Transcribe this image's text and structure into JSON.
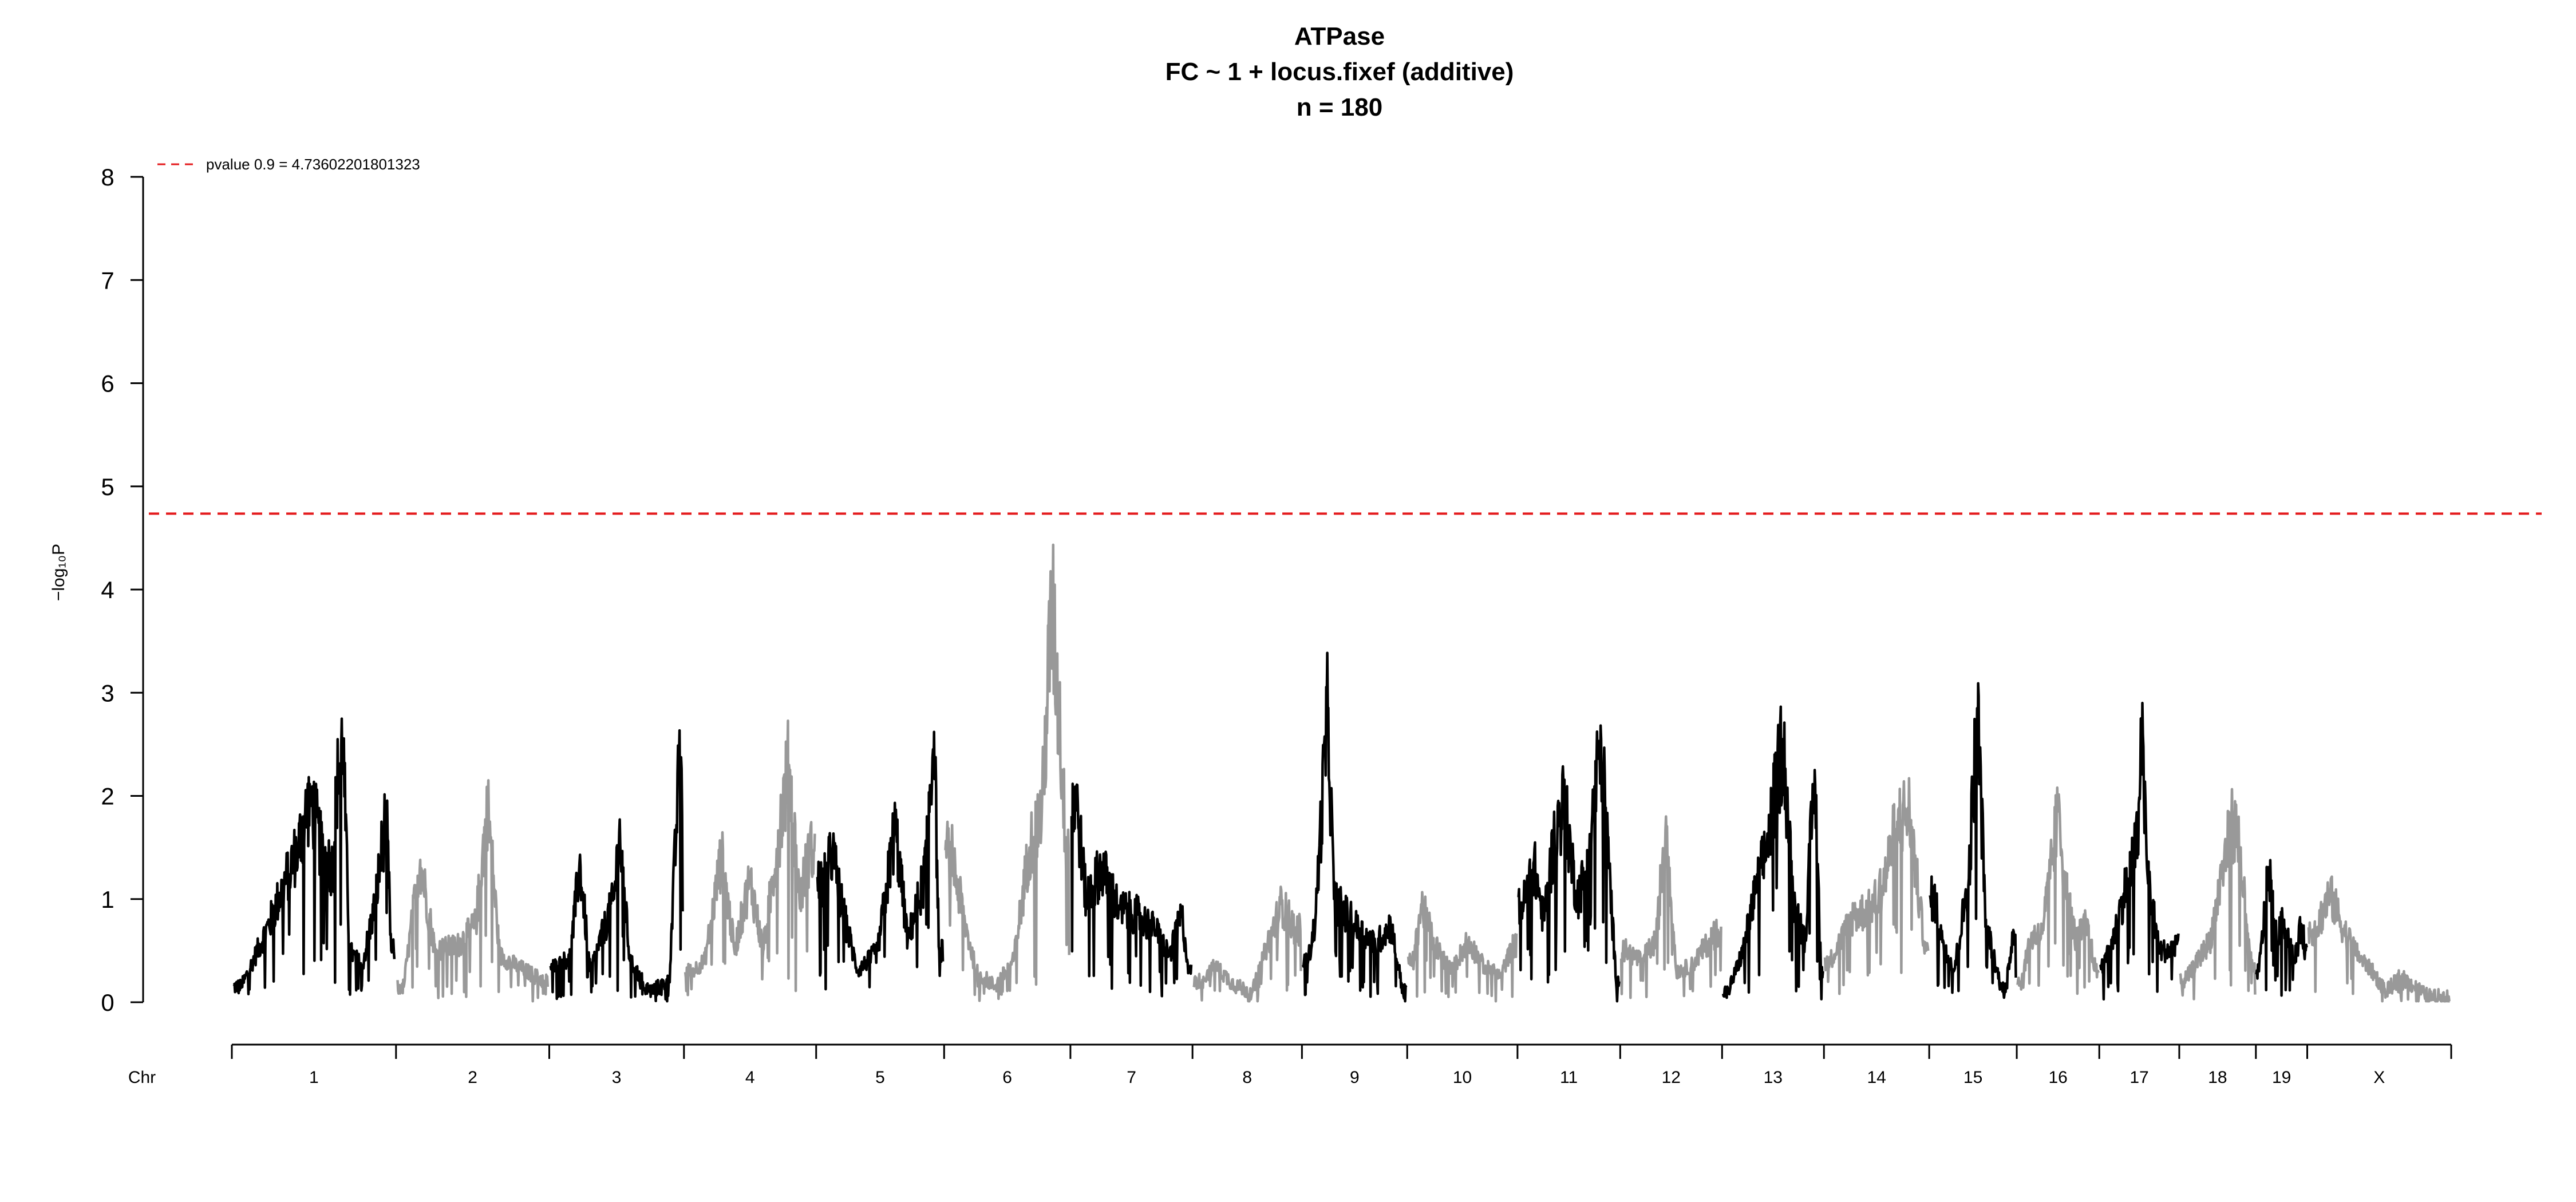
{
  "chart_data": {
    "type": "line",
    "title": "ATPase",
    "subtitle": "FC ~ 1 + locus.fixef (additive)",
    "subtitle2": "n = 180",
    "ylabel": "−log₁₀P",
    "xlabel": "Chr",
    "ylim": [
      0,
      8
    ],
    "yticks": [
      "0",
      "1",
      "2",
      "3",
      "4",
      "5",
      "6",
      "7",
      "8"
    ],
    "grid": false,
    "threshold": {
      "value": 4.73602201801323,
      "label": "pvalue 0.9 = 4.73602201801323",
      "color": "#e41a1c"
    },
    "colors": {
      "odd": "#000000",
      "even": "#999999"
    },
    "legend_position": "top-left",
    "chromosomes": [
      {
        "name": "1",
        "length": 195,
        "peaks": [
          [
            0.05,
            0.15
          ],
          [
            0.22,
            0.75
          ],
          [
            0.4,
            1.5
          ],
          [
            0.48,
            2.0
          ],
          [
            0.55,
            1.45
          ],
          [
            0.62,
            1.3
          ],
          [
            0.64,
            2.05
          ],
          [
            0.68,
            2.55
          ],
          [
            0.72,
            0.5
          ],
          [
            0.8,
            0.35
          ],
          [
            0.88,
            0.95
          ],
          [
            0.95,
            1.85
          ],
          [
            0.98,
            0.5
          ]
        ]
      },
      {
        "name": "2",
        "length": 182,
        "peaks": [
          [
            0.04,
            0.15
          ],
          [
            0.15,
            1.38
          ],
          [
            0.25,
            0.5
          ],
          [
            0.4,
            0.55
          ],
          [
            0.52,
            0.75
          ],
          [
            0.6,
            1.9
          ],
          [
            0.68,
            0.45
          ],
          [
            0.8,
            0.35
          ],
          [
            0.92,
            0.25
          ],
          [
            0.98,
            0.2
          ]
        ]
      },
      {
        "name": "3",
        "length": 160,
        "peaks": [
          [
            0.05,
            0.35
          ],
          [
            0.15,
            0.45
          ],
          [
            0.22,
            1.35
          ],
          [
            0.3,
            0.3
          ],
          [
            0.48,
            1.0
          ],
          [
            0.52,
            1.65
          ],
          [
            0.6,
            0.4
          ],
          [
            0.75,
            0.1
          ],
          [
            0.9,
            0.2
          ],
          [
            0.97,
            2.2
          ]
        ]
      },
      {
        "name": "4",
        "length": 157,
        "peaks": [
          [
            0.05,
            0.3
          ],
          [
            0.15,
            0.4
          ],
          [
            0.28,
            1.42
          ],
          [
            0.38,
            0.5
          ],
          [
            0.5,
            1.2
          ],
          [
            0.6,
            0.5
          ],
          [
            0.74,
            1.8
          ],
          [
            0.8,
            2.3
          ],
          [
            0.88,
            1.0
          ],
          [
            0.96,
            1.45
          ]
        ]
      },
      {
        "name": "5",
        "length": 152,
        "peaks": [
          [
            0.05,
            1.15
          ],
          [
            0.12,
            1.45
          ],
          [
            0.2,
            0.9
          ],
          [
            0.32,
            0.3
          ],
          [
            0.48,
            0.5
          ],
          [
            0.62,
            1.7
          ],
          [
            0.72,
            0.6
          ],
          [
            0.85,
            1.2
          ],
          [
            0.93,
            2.62
          ],
          [
            0.97,
            0.5
          ]
        ]
      },
      {
        "name": "6",
        "length": 150,
        "peaks": [
          [
            0.05,
            1.45
          ],
          [
            0.15,
            0.8
          ],
          [
            0.25,
            0.3
          ],
          [
            0.4,
            0.15
          ],
          [
            0.55,
            0.4
          ],
          [
            0.68,
            1.5
          ],
          [
            0.78,
            1.85
          ],
          [
            0.86,
            3.85
          ],
          [
            0.92,
            2.8
          ],
          [
            0.97,
            1.6
          ]
        ]
      },
      {
        "name": "7",
        "length": 145,
        "peaks": [
          [
            0.04,
            1.95
          ],
          [
            0.12,
            1.0
          ],
          [
            0.25,
            1.3
          ],
          [
            0.4,
            0.9
          ],
          [
            0.55,
            0.85
          ],
          [
            0.7,
            0.7
          ],
          [
            0.82,
            0.45
          ],
          [
            0.92,
            0.85
          ],
          [
            0.98,
            0.3
          ]
        ]
      },
      {
        "name": "8",
        "length": 130,
        "peaks": [
          [
            0.05,
            0.2
          ],
          [
            0.2,
            0.35
          ],
          [
            0.4,
            0.15
          ],
          [
            0.55,
            0.1
          ],
          [
            0.7,
            0.6
          ],
          [
            0.82,
            0.95
          ],
          [
            0.95,
            0.7
          ]
        ]
      },
      {
        "name": "9",
        "length": 125,
        "peaks": [
          [
            0.05,
            0.4
          ],
          [
            0.12,
            0.8
          ],
          [
            0.24,
            2.85
          ],
          [
            0.3,
            1.0
          ],
          [
            0.5,
            0.75
          ],
          [
            0.7,
            0.55
          ],
          [
            0.85,
            0.75
          ],
          [
            0.97,
            0.1
          ]
        ]
      },
      {
        "name": "10",
        "length": 131,
        "peaks": [
          [
            0.05,
            0.4
          ],
          [
            0.12,
            0.95
          ],
          [
            0.25,
            0.55
          ],
          [
            0.4,
            0.3
          ],
          [
            0.55,
            0.6
          ],
          [
            0.7,
            0.35
          ],
          [
            0.85,
            0.25
          ],
          [
            0.97,
            0.55
          ]
        ]
      },
      {
        "name": "11",
        "length": 122,
        "peaks": [
          [
            0.05,
            0.95
          ],
          [
            0.15,
            1.35
          ],
          [
            0.25,
            0.8
          ],
          [
            0.35,
            1.55
          ],
          [
            0.45,
            1.95
          ],
          [
            0.58,
            1.0
          ],
          [
            0.65,
            1.2
          ],
          [
            0.82,
            2.55
          ],
          [
            0.9,
            1.3
          ],
          [
            0.97,
            0.2
          ]
        ]
      },
      {
        "name": "12",
        "length": 121,
        "peaks": [
          [
            0.05,
            0.5
          ],
          [
            0.2,
            0.4
          ],
          [
            0.35,
            0.6
          ],
          [
            0.45,
            1.8
          ],
          [
            0.55,
            0.3
          ],
          [
            0.7,
            0.35
          ],
          [
            0.85,
            0.55
          ],
          [
            0.97,
            0.7
          ]
        ]
      },
      {
        "name": "13",
        "length": 121,
        "peaks": [
          [
            0.05,
            0.1
          ],
          [
            0.2,
            0.5
          ],
          [
            0.32,
            1.05
          ],
          [
            0.45,
            1.55
          ],
          [
            0.6,
            2.55
          ],
          [
            0.7,
            1.0
          ],
          [
            0.82,
            0.6
          ],
          [
            0.92,
            2.25
          ],
          [
            0.98,
            0.3
          ]
        ]
      },
      {
        "name": "14",
        "length": 125,
        "peaks": [
          [
            0.05,
            0.4
          ],
          [
            0.15,
            0.6
          ],
          [
            0.28,
            0.85
          ],
          [
            0.45,
            0.9
          ],
          [
            0.58,
            1.2
          ],
          [
            0.7,
            1.75
          ],
          [
            0.82,
            1.85
          ],
          [
            0.92,
            0.9
          ],
          [
            0.98,
            0.5
          ]
        ]
      },
      {
        "name": "15",
        "length": 104,
        "peaks": [
          [
            0.05,
            1.0
          ],
          [
            0.15,
            0.6
          ],
          [
            0.28,
            0.3
          ],
          [
            0.45,
            1.2
          ],
          [
            0.55,
            2.85
          ],
          [
            0.65,
            0.8
          ],
          [
            0.78,
            0.3
          ],
          [
            0.88,
            0.1
          ],
          [
            0.97,
            0.7
          ]
        ]
      },
      {
        "name": "16",
        "length": 98,
        "peaks": [
          [
            0.05,
            0.2
          ],
          [
            0.15,
            0.6
          ],
          [
            0.3,
            0.7
          ],
          [
            0.4,
            1.2
          ],
          [
            0.5,
            1.85
          ],
          [
            0.6,
            1.1
          ],
          [
            0.72,
            0.6
          ],
          [
            0.85,
            0.75
          ],
          [
            0.97,
            0.3
          ]
        ]
      },
      {
        "name": "17",
        "length": 95,
        "peaks": [
          [
            0.05,
            0.35
          ],
          [
            0.2,
            0.7
          ],
          [
            0.35,
            1.2
          ],
          [
            0.48,
            1.55
          ],
          [
            0.52,
            2.75
          ],
          [
            0.6,
            1.3
          ],
          [
            0.75,
            0.5
          ],
          [
            0.9,
            0.5
          ],
          [
            0.97,
            0.6
          ]
        ]
      },
      {
        "name": "18",
        "length": 91,
        "peaks": [
          [
            0.05,
            0.2
          ],
          [
            0.15,
            0.3
          ],
          [
            0.4,
            0.6
          ],
          [
            0.55,
            1.2
          ],
          [
            0.7,
            1.75
          ],
          [
            0.8,
            1.5
          ],
          [
            0.9,
            0.6
          ],
          [
            0.97,
            0.3
          ]
        ]
      },
      {
        "name": "19",
        "length": 61,
        "peaks": [
          [
            0.05,
            0.3
          ],
          [
            0.25,
            1.3
          ],
          [
            0.4,
            0.6
          ],
          [
            0.55,
            0.8
          ],
          [
            0.75,
            0.4
          ],
          [
            0.9,
            0.75
          ],
          [
            0.97,
            0.5
          ]
        ]
      },
      {
        "name": "X",
        "length": 171,
        "peaks": [
          [
            0.05,
            0.7
          ],
          [
            0.15,
            1.05
          ],
          [
            0.25,
            0.7
          ],
          [
            0.35,
            0.45
          ],
          [
            0.45,
            0.3
          ],
          [
            0.55,
            0.1
          ],
          [
            0.65,
            0.25
          ],
          [
            0.75,
            0.15
          ],
          [
            0.85,
            0.05
          ],
          [
            0.97,
            0.05
          ]
        ]
      }
    ]
  }
}
